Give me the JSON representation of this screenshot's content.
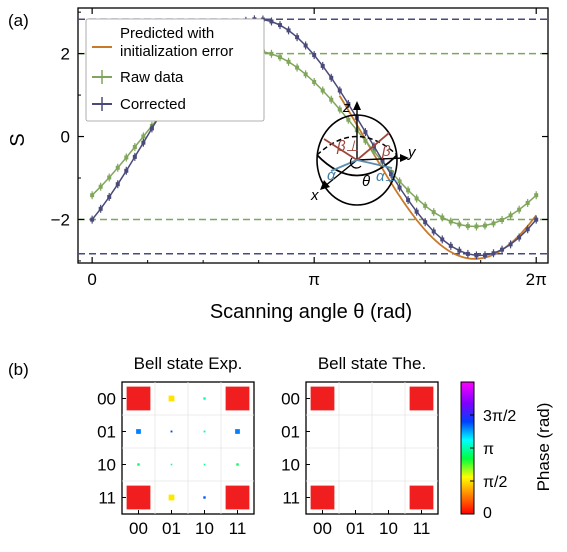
{
  "panel_a": {
    "label": "(a)",
    "ylabel": "S",
    "xlabel": "Scanning angle θ (rad)",
    "legend": {
      "predicted": [
        "Predicted with",
        "initialization error"
      ],
      "raw": "Raw data",
      "corrected": "Corrected"
    },
    "sphere_labels": {
      "z": "z",
      "y": "y",
      "x": "x",
      "beta1": "β⊥",
      "beta2": "β",
      "alpha1": "α",
      "alpha2": "α⊥",
      "theta": "θ"
    }
  },
  "panel_b": {
    "label": "(b)",
    "exp_title": "Bell state Exp.",
    "the_title": "Bell state The.",
    "basis": [
      "00",
      "01",
      "10",
      "11"
    ],
    "colorbar_label": "Phase (rad)",
    "colorbar_ticks": [
      "0",
      "π/2",
      "π",
      "3π/2"
    ]
  },
  "colors": {
    "raw": "#7fa65a",
    "corrected": "#4a4a7a",
    "predicted": "#c87a2a",
    "red_block": "#f01e1e"
  },
  "chart_data": [
    {
      "type": "line",
      "xlabel": "Scanning angle θ (rad)",
      "ylabel": "S",
      "x_ticks": [
        "0",
        "π",
        "2π"
      ],
      "y_ticks": [
        "−2",
        "0",
        "2"
      ],
      "xlim": [
        -0.2,
        6.45
      ],
      "ylim": [
        -3.05,
        3.1
      ],
      "reference_lines": [
        2.828,
        2.0,
        -2.0,
        -2.828
      ],
      "series": [
        {
          "name": "Predicted with initialization error",
          "model": "2.95*sin(θ-0.70)",
          "x_range": [
            3.5,
            6.28
          ]
        },
        {
          "name": "Raw data",
          "model": "-0.05+2.12*sin(θ-0.70)",
          "x_range": [
            0,
            6.28
          ],
          "points": 53
        },
        {
          "name": "Corrected",
          "model": "-0.02+2.85*sin(θ-0.77)",
          "x_range": [
            0,
            6.28
          ],
          "points": 53
        }
      ]
    },
    {
      "type": "heatmap",
      "title": "Bell state Exp.",
      "rows": [
        "00",
        "01",
        "10",
        "11"
      ],
      "cols": [
        "00",
        "01",
        "10",
        "11"
      ],
      "magnitude": [
        [
          0.5,
          0.03,
          0.005,
          0.5
        ],
        [
          0.02,
          0.003,
          0.003,
          0.02
        ],
        [
          0.005,
          0.002,
          0.002,
          0.005
        ],
        [
          0.5,
          0.03,
          0.005,
          0.5
        ]
      ],
      "phase": [
        [
          0.0,
          1.57,
          3.2,
          0.0
        ],
        [
          4.1,
          4.5,
          3.1,
          4.1
        ],
        [
          2.8,
          3.0,
          3.0,
          2.8
        ],
        [
          0.0,
          1.6,
          4.3,
          0.0
        ]
      ]
    },
    {
      "type": "heatmap",
      "title": "Bell state The.",
      "rows": [
        "00",
        "01",
        "10",
        "11"
      ],
      "cols": [
        "00",
        "01",
        "10",
        "11"
      ],
      "magnitude": [
        [
          0.5,
          0,
          0,
          0.5
        ],
        [
          0,
          0,
          0,
          0
        ],
        [
          0,
          0,
          0,
          0
        ],
        [
          0.5,
          0,
          0,
          0.5
        ]
      ],
      "phase": [
        [
          0,
          0,
          0,
          0
        ],
        [
          0,
          0,
          0,
          0
        ],
        [
          0,
          0,
          0,
          0
        ],
        [
          0,
          0,
          0,
          0
        ]
      ]
    }
  ]
}
